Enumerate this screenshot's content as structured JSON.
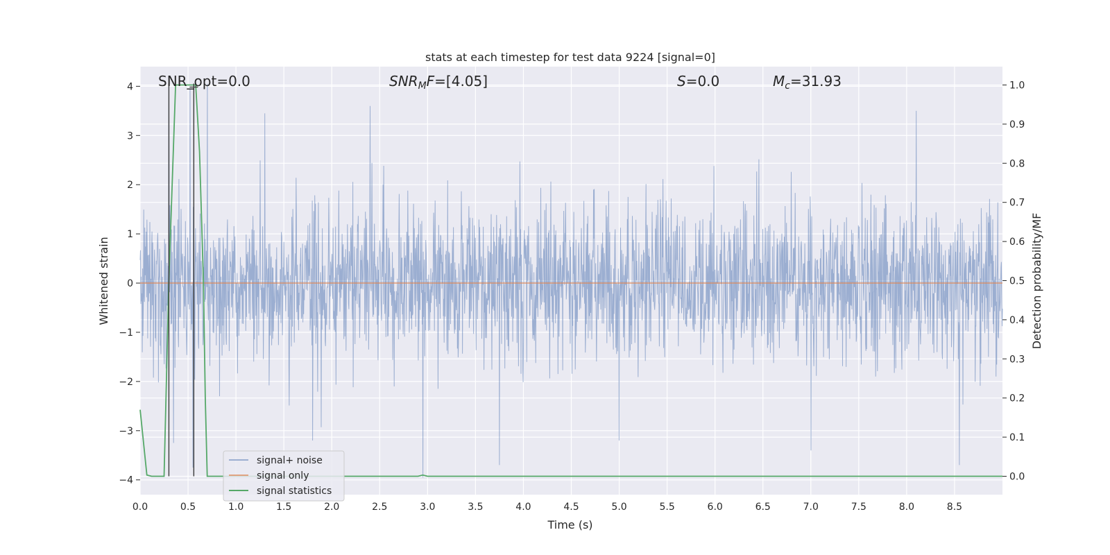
{
  "chart_data": {
    "type": "line",
    "title": "stats at each timestep for test data 9224 [signal=0]",
    "xlabel": "Time (s)",
    "ylabel_left": "Whitened strain",
    "ylabel_right": "Detection probability/MF",
    "xlim": [
      0.0,
      9.0
    ],
    "ylim_left": [
      -4.3,
      4.4
    ],
    "ylim_right": [
      -0.047,
      1.047
    ],
    "x_ticks": [
      "0.0",
      "0.5",
      "1.0",
      "1.5",
      "2.0",
      "2.5",
      "3.0",
      "3.5",
      "4.0",
      "4.5",
      "5.0",
      "5.5",
      "6.0",
      "6.5",
      "7.0",
      "7.5",
      "8.0",
      "8.5"
    ],
    "y_left_ticks": [
      "−4",
      "−3",
      "−2",
      "−1",
      "0",
      "1",
      "2",
      "3",
      "4"
    ],
    "y_right_ticks": [
      "0.0",
      "0.1",
      "0.2",
      "0.3",
      "0.4",
      "0.5",
      "0.6",
      "0.7",
      "0.8",
      "0.9",
      "1.0"
    ],
    "grid": true,
    "annotations": {
      "snr_opt": "SNR_opt=0.0",
      "snr_mf_prefix": "SNR",
      "snr_mf_sub": "M",
      "snr_mf_suffix": "F=[4.05]",
      "s_italic": "S",
      "s_value": "=0.0",
      "mc_italic": "M",
      "mc_sub": "c",
      "mc_value": "=31.93"
    },
    "legend": {
      "placement": "lower-left",
      "entries": [
        "signal+ noise",
        "signal only",
        "signal statistics"
      ]
    },
    "series": [
      {
        "name": "signal+ noise",
        "axis": "left",
        "color": "#4c72b0",
        "description_values": "whitened strain noise, approx Gaussian std ~0.8, range about -3.7 to 4.0",
        "noise_std": 0.8,
        "peaks": [
          [
            0.3,
            4.05
          ],
          [
            0.52,
            3.95
          ],
          [
            0.7,
            4.05
          ],
          [
            1.3,
            3.45
          ],
          [
            2.4,
            3.6
          ],
          [
            8.1,
            3.5
          ],
          [
            2.95,
            -3.95
          ],
          [
            3.75,
            -3.7
          ],
          [
            8.55,
            -3.7
          ],
          [
            7.0,
            -3.4
          ],
          [
            1.8,
            -3.2
          ],
          [
            5.0,
            -3.2
          ],
          [
            0.55,
            -3.75
          ],
          [
            0.35,
            -3.25
          ]
        ]
      },
      {
        "name": "signal only",
        "axis": "left",
        "color": "#dd8452",
        "values_description": "flat at 0",
        "x": [
          0.0,
          9.0
        ],
        "y": [
          0.0,
          0.0
        ]
      },
      {
        "name": "signal statistics",
        "axis": "right",
        "color": "#55a868",
        "x": [
          0.0,
          0.07,
          0.12,
          0.25,
          0.3,
          0.37,
          0.4,
          0.45,
          0.55,
          0.58,
          0.62,
          0.66,
          0.68,
          0.7,
          0.75,
          2.9,
          2.95,
          3.0,
          9.0
        ],
        "y": [
          0.17,
          0.003,
          0.0,
          0.0,
          0.5,
          1.0,
          1.0,
          1.0,
          1.0,
          1.0,
          0.83,
          0.5,
          0.2,
          0.0,
          0.0,
          0.0,
          0.003,
          0.0,
          0.0
        ]
      }
    ],
    "vertical_markers": [
      {
        "x": 0.3,
        "color": "#3a3a3a"
      },
      {
        "x": 0.56,
        "color": "#3a3a3a"
      }
    ]
  }
}
